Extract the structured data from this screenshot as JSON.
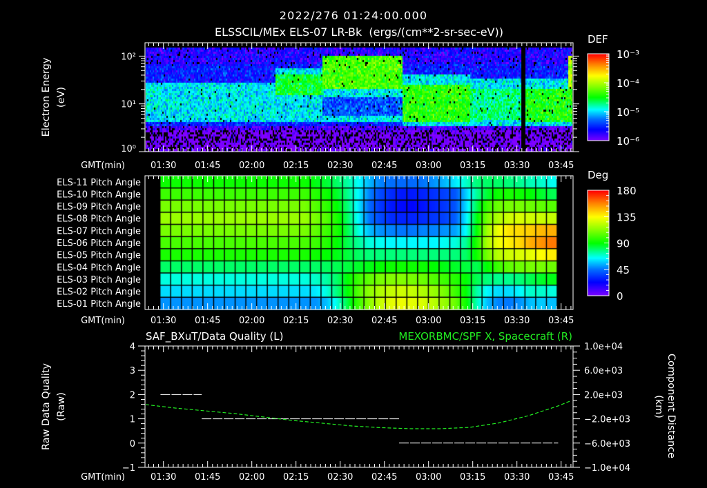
{
  "header": {
    "timestamp": "2022/276 01:24:00.000",
    "title": "ELSSCIL/MEx ELS-07 LR-Bk  (ergs/(cm**2-sr-sec-eV))"
  },
  "time_axis": {
    "label": "GMT(min)",
    "ticks": [
      "01:30",
      "01:45",
      "02:00",
      "02:15",
      "02:30",
      "02:45",
      "03:00",
      "03:15",
      "03:30",
      "03:45"
    ],
    "start": "01:24",
    "end": "03:49"
  },
  "colors": {
    "background": "#000000",
    "foreground": "#ffffff",
    "spacecraft_series": "#22ee22"
  },
  "chart_data": [
    {
      "type": "heatmap",
      "name": "electron-energy-spectrogram",
      "title": "ELSSCIL/MEx ELS-07 LR-Bk  (ergs/(cm**2-sr-sec-eV))",
      "ylabel": "Electron Energy",
      "yunits": "(eV)",
      "yscale": "log",
      "ylim": [
        1,
        190
      ],
      "yticks": [
        {
          "value": 100,
          "label": "10²"
        },
        {
          "value": 10,
          "label": "10¹"
        },
        {
          "value": 1,
          "label": "10⁰"
        }
      ],
      "xlabel": "GMT(min)",
      "xlim": [
        "01:24",
        "03:49"
      ],
      "colorbar": {
        "label": "DEF",
        "scale": "log",
        "range": [
          1e-06,
          0.001
        ],
        "ticks": [
          {
            "exp": -3,
            "label": "10⁻³"
          },
          {
            "exp": -4,
            "label": "10⁻⁴"
          },
          {
            "exp": -5,
            "label": "10⁻⁵"
          },
          {
            "exp": -6,
            "label": "10⁻⁶"
          }
        ]
      },
      "value_units": "log10 DEF; time in minutes after 01:24; energy as log10(eV)",
      "background": [
        {
          "e0": -1,
          "e1": 0.45,
          "level": -6.05,
          "black_prob": 0.32
        },
        {
          "e0": 0.45,
          "e1": 0.55,
          "level": -5.85,
          "black_prob": 0.12
        },
        {
          "e0": 0.55,
          "e1": 1.85,
          "level": -5.55,
          "black_prob": 0.02
        },
        {
          "e0": 1.85,
          "e1": 3,
          "level": -5.7,
          "black_prob": 0.06
        }
      ],
      "segments": [
        {
          "t0": 0,
          "t1": 44,
          "bands": [
            {
              "e0": 0.55,
              "e1": 0.64,
              "level": -5.5
            },
            {
              "e0": 0.64,
              "e1": 1.43,
              "level": -4.95
            }
          ]
        },
        {
          "t0": 44,
          "t1": 60,
          "bands": [
            {
              "e0": 0.55,
              "e1": 0.64,
              "level": -5.5
            },
            {
              "e0": 0.64,
              "e1": 1.75,
              "level": -4.95
            },
            {
              "e0": 1.2,
              "e1": 1.6,
              "level": -4.55
            }
          ]
        },
        {
          "t0": 60,
          "t1": 87,
          "bands": [
            {
              "e0": 1.3,
              "e1": 2.0,
              "level": -4.3
            },
            {
              "e0": 1.14,
              "e1": 1.3,
              "level": -4.95
            },
            {
              "e0": 0.74,
              "e1": 1.14,
              "level": -5.35
            },
            {
              "e0": 0.6,
              "e1": 0.74,
              "level": -4.95
            }
          ]
        },
        {
          "t0": 87,
          "t1": 110,
          "bands": [
            {
              "e0": 0.55,
              "e1": 1.6,
              "level": -4.95
            },
            {
              "e0": 0.62,
              "e1": 1.38,
              "level": -4.4
            }
          ]
        },
        {
          "t0": 110,
          "t1": 127.3,
          "bands": [
            {
              "e0": 0.55,
              "e1": 1.55,
              "level": -4.95
            },
            {
              "e0": 0.65,
              "e1": 1.3,
              "level": -4.7
            }
          ]
        },
        {
          "t0": 127.3,
          "t1": 128.7,
          "gap": true,
          "bands": []
        },
        {
          "t0": 128.7,
          "t1": 145,
          "bands": [
            {
              "e0": 0.55,
              "e1": 1.55,
              "level": -4.95
            },
            {
              "e0": 0.6,
              "e1": 1.3,
              "level": -4.45
            }
          ]
        },
        {
          "t0": 143.6,
          "t1": 145,
          "bands": [
            {
              "e0": 1.3,
              "e1": 2.0,
              "level": -4.0
            }
          ]
        }
      ]
    },
    {
      "type": "heatmap",
      "name": "pitch-angle-grid",
      "xlabel": "GMT(min)",
      "row_labels": [
        "ELS-11 Pitch Angle",
        "ELS-10 Pitch Angle",
        "ELS-09 Pitch Angle",
        "ELS-08 Pitch Angle",
        "ELS-07 Pitch Angle",
        "ELS-06 Pitch Angle",
        "ELS-05 Pitch Angle",
        "ELS-04 Pitch Angle",
        "ELS-03 Pitch Angle",
        "ELS-02 Pitch Angle",
        "ELS-01 Pitch Angle"
      ],
      "columns": {
        "count": 37,
        "first_column_start": "01:29",
        "column_width_min": 3.65
      },
      "colorbar": {
        "label": "Deg",
        "range": [
          0,
          180
        ],
        "ticks": [
          {
            "value": 180,
            "label": "180"
          },
          {
            "value": 135,
            "label": "135"
          },
          {
            "value": 90,
            "label": "90"
          },
          {
            "value": 45,
            "label": "45"
          },
          {
            "value": 0,
            "label": "0"
          }
        ]
      },
      "values": [
        [
          92,
          92,
          92,
          92,
          92,
          92,
          92,
          92,
          92,
          92,
          92,
          92,
          92,
          92,
          88,
          85,
          80,
          74,
          65,
          55,
          48,
          45,
          44,
          44,
          46,
          50,
          55,
          62,
          70,
          78,
          80,
          80,
          78,
          76,
          72,
          70,
          66
        ],
        [
          100,
          100,
          100,
          100,
          100,
          100,
          100,
          100,
          100,
          100,
          100,
          100,
          100,
          100,
          96,
          92,
          86,
          76,
          64,
          48,
          38,
          32,
          28,
          28,
          30,
          33,
          36,
          40,
          58,
          75,
          85,
          92,
          94,
          92,
          90,
          86,
          82
        ],
        [
          110,
          110,
          110,
          110,
          110,
          110,
          110,
          110,
          110,
          110,
          110,
          110,
          110,
          110,
          104,
          98,
          90,
          78,
          62,
          44,
          34,
          28,
          25,
          24,
          27,
          30,
          34,
          40,
          60,
          82,
          100,
          108,
          110,
          110,
          108,
          106,
          104
        ],
        [
          116,
          116,
          116,
          116,
          116,
          116,
          116,
          116,
          116,
          116,
          116,
          116,
          116,
          116,
          110,
          104,
          94,
          80,
          64,
          46,
          38,
          32,
          30,
          30,
          32,
          34,
          36,
          42,
          62,
          88,
          110,
          120,
          126,
          128,
          126,
          125,
          124
        ],
        [
          110,
          110,
          110,
          110,
          110,
          110,
          110,
          110,
          110,
          110,
          110,
          110,
          110,
          110,
          106,
          100,
          94,
          82,
          68,
          56,
          50,
          48,
          46,
          46,
          48,
          48,
          50,
          52,
          65,
          90,
          118,
          132,
          140,
          142,
          144,
          148,
          150
        ],
        [
          102,
          102,
          102,
          102,
          102,
          102,
          102,
          102,
          102,
          102,
          102,
          102,
          102,
          102,
          100,
          96,
          90,
          82,
          75,
          68,
          66,
          64,
          64,
          64,
          64,
          64,
          66,
          68,
          75,
          95,
          120,
          132,
          138,
          142,
          150,
          155,
          160
        ],
        [
          94,
          94,
          94,
          94,
          94,
          94,
          94,
          94,
          94,
          94,
          94,
          94,
          94,
          94,
          92,
          90,
          88,
          84,
          80,
          78,
          78,
          78,
          78,
          78,
          78,
          78,
          78,
          78,
          80,
          92,
          110,
          122,
          126,
          128,
          130,
          135,
          138
        ],
        [
          80,
          80,
          80,
          80,
          80,
          80,
          80,
          80,
          80,
          80,
          80,
          80,
          80,
          80,
          80,
          81,
          82,
          84,
          86,
          88,
          90,
          92,
          92,
          92,
          92,
          90,
          88,
          86,
          84,
          82,
          90,
          100,
          106,
          108,
          110,
          110,
          108
        ],
        [
          68,
          68,
          68,
          68,
          68,
          68,
          68,
          68,
          68,
          68,
          68,
          68,
          68,
          68,
          70,
          74,
          80,
          90,
          100,
          106,
          110,
          112,
          112,
          110,
          108,
          104,
          100,
          96,
          90,
          82,
          78,
          76,
          76,
          78,
          82,
          86,
          88
        ],
        [
          60,
          60,
          60,
          60,
          60,
          60,
          60,
          60,
          60,
          60,
          60,
          60,
          60,
          60,
          62,
          68,
          78,
          90,
          104,
          114,
          120,
          124,
          126,
          124,
          120,
          116,
          110,
          100,
          90,
          74,
          64,
          60,
          60,
          64,
          70,
          70,
          68
        ],
        [
          50,
          50,
          50,
          50,
          50,
          50,
          50,
          50,
          50,
          50,
          50,
          50,
          50,
          50,
          50,
          56,
          68,
          84,
          100,
          114,
          124,
          130,
          132,
          130,
          128,
          122,
          116,
          108,
          92,
          72,
          56,
          48,
          46,
          50,
          56,
          58,
          56
        ]
      ]
    },
    {
      "type": "line",
      "name": "data-quality-and-spacecraft-x",
      "title_left": "SAF_BXuT/Data Quality (L)",
      "title_right": "MEXORBMC/SPF X, Spacecraft (R)",
      "xlabel": "GMT(min)",
      "ylabel_left": "Raw Data Quality",
      "yunits_left": "(Raw)",
      "ylim_left": [
        -1,
        4
      ],
      "yticks_left": [
        {
          "value": 4,
          "label": "4"
        },
        {
          "value": 3,
          "label": "3"
        },
        {
          "value": 2,
          "label": "2"
        },
        {
          "value": 1,
          "label": "1"
        },
        {
          "value": 0,
          "label": "0"
        },
        {
          "value": -1,
          "label": "−1"
        }
      ],
      "ylabel_right": "Component Distance",
      "yunits_right": "(km)",
      "ylim_right": [
        -10000,
        10000
      ],
      "yticks_right": [
        {
          "value": 10000,
          "label": "1.0e+04"
        },
        {
          "value": 6000,
          "label": "6.0e+03"
        },
        {
          "value": 2000,
          "label": "2.0e+03"
        },
        {
          "value": -2000,
          "label": "−2.0e+03"
        },
        {
          "value": -6000,
          "label": "−6.0e+03"
        },
        {
          "value": -10000,
          "label": "−1.0e+04"
        }
      ],
      "series": [
        {
          "name": "SAF_BXuT/Data Quality",
          "axis": "left",
          "color": "#ffffff",
          "steps": [
            {
              "from": "01:29",
              "to": "01:43",
              "value": 2
            },
            {
              "from": "01:43",
              "to": "02:50",
              "value": 1
            },
            {
              "from": "02:50",
              "to": "03:44",
              "value": 0
            }
          ]
        },
        {
          "name": "MEXORBMC/SPF X, Spacecraft",
          "axis": "right",
          "color": "#22ee22",
          "x": [
            "01:24",
            "01:34",
            "01:44",
            "01:54",
            "02:04",
            "02:14",
            "02:24",
            "02:34",
            "02:44",
            "02:54",
            "03:04",
            "03:14",
            "03:24",
            "03:34",
            "03:44",
            "03:48"
          ],
          "values": [
            340,
            -230,
            -680,
            -1140,
            -1710,
            -2270,
            -2730,
            -3180,
            -3470,
            -3640,
            -3640,
            -3410,
            -2670,
            -1480,
            120,
            910
          ]
        }
      ]
    }
  ]
}
